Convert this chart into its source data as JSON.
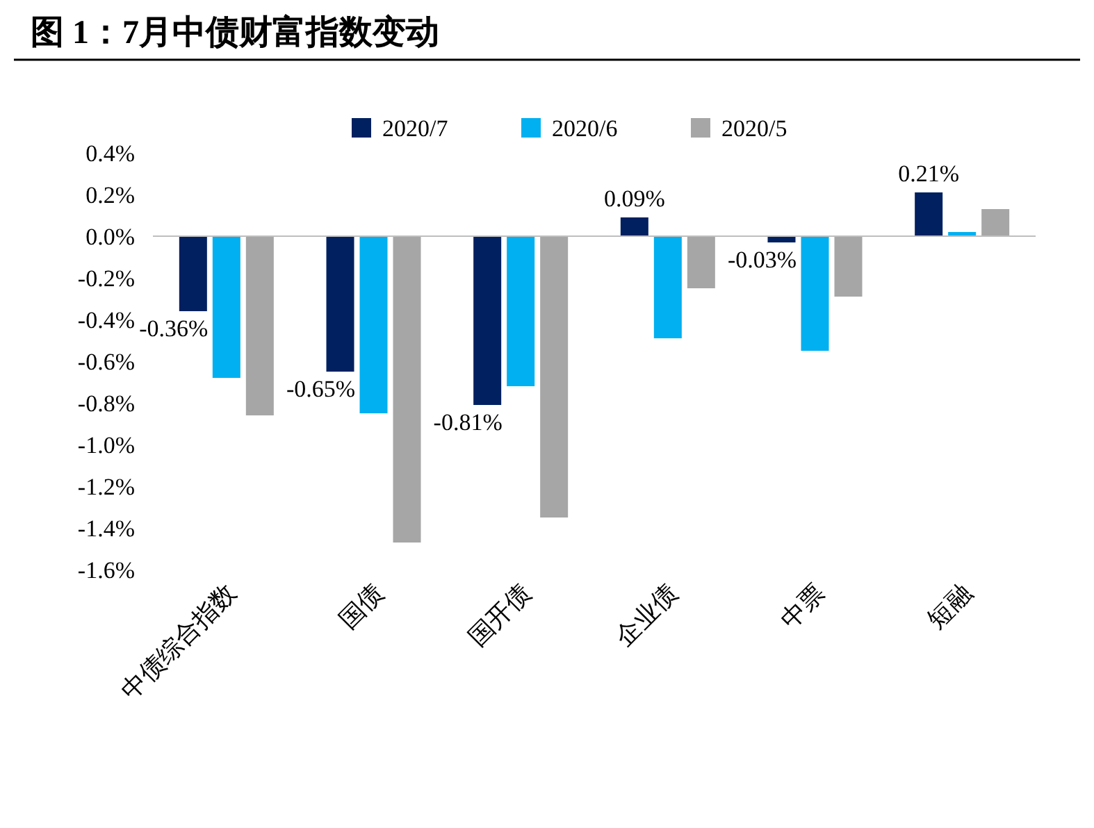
{
  "chart_data": {
    "type": "bar",
    "title": "图 1：7月中债财富指数变动",
    "categories": [
      "中债综合指数",
      "国债",
      "国开债",
      "企业债",
      "中票",
      "短融"
    ],
    "series": [
      {
        "name": "2020/7",
        "color": "#002060",
        "values": [
          -0.36,
          -0.65,
          -0.81,
          0.09,
          -0.03,
          0.21
        ],
        "value_labels": [
          "-0.36%",
          "-0.65%",
          "-0.81%",
          "0.09%",
          "-0.03%",
          "0.21%"
        ]
      },
      {
        "name": "2020/6",
        "color": "#00b0f0",
        "values": [
          -0.68,
          -0.85,
          -0.72,
          -0.49,
          -0.55,
          0.02
        ]
      },
      {
        "name": "2020/5",
        "color": "#a6a6a6",
        "values": [
          -0.86,
          -1.47,
          -1.35,
          -0.25,
          -0.29,
          0.13
        ]
      }
    ],
    "ylim": [
      -1.6,
      0.4
    ],
    "yticks": [
      {
        "value": 0.4,
        "label": "0.4%"
      },
      {
        "value": 0.2,
        "label": "0.2%"
      },
      {
        "value": 0,
        "label": "0.0%"
      },
      {
        "value": -0.2,
        "label": "-0.2%"
      },
      {
        "value": -0.4,
        "label": "-0.4%"
      },
      {
        "value": -0.6,
        "label": "-0.6%"
      },
      {
        "value": -0.8,
        "label": "-0.8%"
      },
      {
        "value": -1,
        "label": "-1.0%"
      },
      {
        "value": -1.2,
        "label": "-1.2%"
      },
      {
        "value": -1.4,
        "label": "-1.4%"
      },
      {
        "value": -1.6,
        "label": "-1.6%"
      }
    ],
    "ref_lines": [
      {
        "axis": "y",
        "value": 0,
        "color": "#bfbfbf"
      }
    ],
    "legend": "top"
  }
}
